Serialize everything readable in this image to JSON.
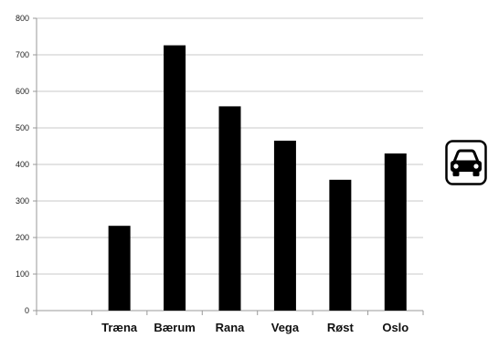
{
  "chart_data": {
    "type": "bar",
    "title": "",
    "xlabel": "",
    "ylabel": "",
    "categories": [
      "",
      "Træna",
      "Bærum",
      "Rana",
      "Vega",
      "Røst",
      "Oslo"
    ],
    "values": [
      0,
      232,
      726,
      559,
      465,
      358,
      430
    ],
    "ylim": [
      0,
      800
    ],
    "yticks": [
      0,
      100,
      200,
      300,
      400,
      500,
      600,
      700,
      800
    ],
    "grid": true,
    "bar_color": "#000000",
    "grid_color": "#c8c8c8"
  },
  "legend_icon": "car-icon"
}
